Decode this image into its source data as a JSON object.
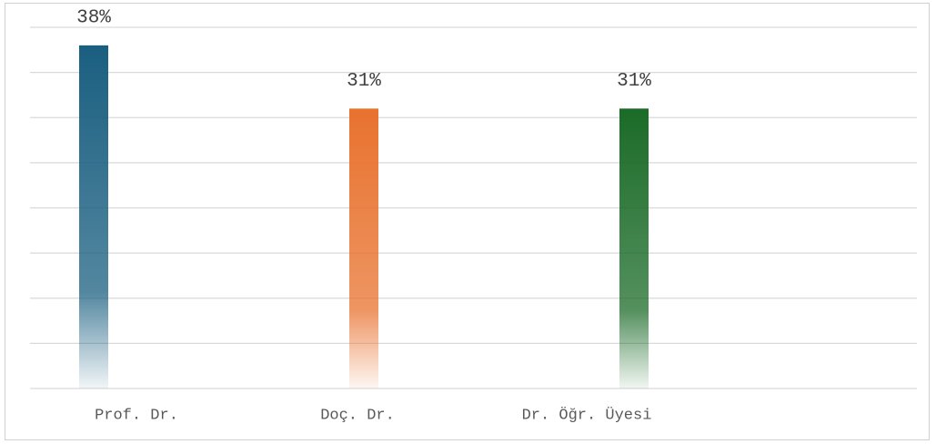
{
  "chart_data": {
    "type": "bar",
    "categories": [
      "Prof. Dr.",
      "Doç. Dr.",
      "Dr. Öğr. Üyesi"
    ],
    "values": [
      38,
      31,
      31
    ],
    "value_labels": [
      "38%",
      "31%",
      "31%"
    ],
    "colors": [
      "#1a5f80",
      "#e8722e",
      "#1b6b28"
    ],
    "ylim": [
      0,
      40
    ],
    "yticks": [
      0,
      5,
      10,
      15,
      20,
      25,
      30,
      35,
      40
    ],
    "grid": true
  }
}
